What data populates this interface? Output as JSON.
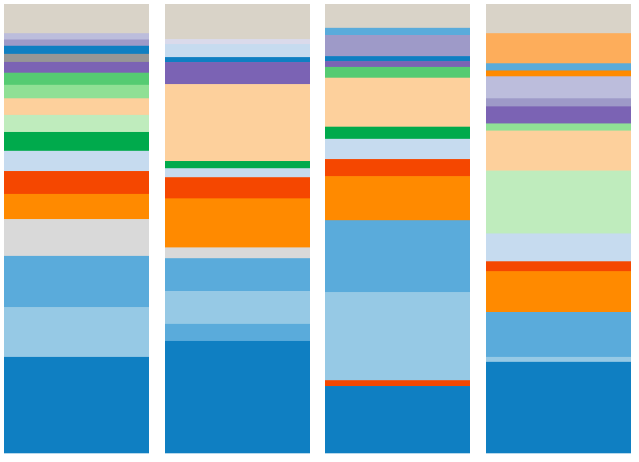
{
  "chart_data": {
    "type": "bar",
    "stacked": true,
    "normalized": true,
    "orientation": "vertical",
    "categories": [
      "",
      "",
      "",
      ""
    ],
    "title": "",
    "xlabel": "",
    "ylabel": "",
    "ylim": [
      0,
      100
    ],
    "grid": false,
    "legend": "none",
    "stack_order": "top-to-bottom",
    "bars": [
      {
        "segments": [
          {
            "value": 6.5,
            "color": "#d9d3c8"
          },
          {
            "value": 1.4,
            "color": "#bcbddc"
          },
          {
            "value": 1.4,
            "color": "#9e9ac8"
          },
          {
            "value": 1.8,
            "color": "#0f7fc2"
          },
          {
            "value": 1.8,
            "color": "#969696"
          },
          {
            "value": 2.4,
            "color": "#7b63b4"
          },
          {
            "value": 2.7,
            "color": "#55cb72"
          },
          {
            "value": 3.0,
            "color": "#90e095"
          },
          {
            "value": 3.7,
            "color": "#fdd09c"
          },
          {
            "value": 3.8,
            "color": "#bfecbd"
          },
          {
            "value": 4.2,
            "color": "#00aa4c"
          },
          {
            "value": 4.5,
            "color": "#c6dbef"
          },
          {
            "value": 5.1,
            "color": "#f54700"
          },
          {
            "value": 5.6,
            "color": "#ff8a00"
          },
          {
            "value": 8.2,
            "color": "#d9d9d9"
          },
          {
            "value": 11.4,
            "color": "#5aabdb"
          },
          {
            "value": 11.1,
            "color": "#96c9e5"
          },
          {
            "value": 21.4,
            "color": "#0f7fc2"
          }
        ]
      },
      {
        "segments": [
          {
            "value": 7.8,
            "color": "#d9d3c8"
          },
          {
            "value": 1.1,
            "color": "#dadaeb"
          },
          {
            "value": 2.9,
            "color": "#c6dbef"
          },
          {
            "value": 1.1,
            "color": "#0f7fc2"
          },
          {
            "value": 4.9,
            "color": "#7b63b4"
          },
          {
            "value": 17.1,
            "color": "#fdd09c"
          },
          {
            "value": 1.6,
            "color": "#00aa4c"
          },
          {
            "value": 2.0,
            "color": "#c6dbef"
          },
          {
            "value": 4.7,
            "color": "#f54700"
          },
          {
            "value": 10.9,
            "color": "#ff8a00"
          },
          {
            "value": 2.4,
            "color": "#d9d9d9"
          },
          {
            "value": 7.3,
            "color": "#5aabdb"
          },
          {
            "value": 7.3,
            "color": "#96c9e5"
          },
          {
            "value": 3.8,
            "color": "#5aabdb"
          },
          {
            "value": 24.9,
            "color": "#0f7fc2"
          }
        ]
      },
      {
        "segments": [
          {
            "value": 5.3,
            "color": "#d9d3c8"
          },
          {
            "value": 1.6,
            "color": "#5aabdb"
          },
          {
            "value": 4.7,
            "color": "#9e9ac8"
          },
          {
            "value": 1.1,
            "color": "#0f7fc2"
          },
          {
            "value": 1.3,
            "color": "#7b63b4"
          },
          {
            "value": 2.4,
            "color": "#55cb72"
          },
          {
            "value": 10.9,
            "color": "#fdd09c"
          },
          {
            "value": 2.7,
            "color": "#00aa4c"
          },
          {
            "value": 4.5,
            "color": "#c6dbef"
          },
          {
            "value": 3.8,
            "color": "#f54700"
          },
          {
            "value": 9.8,
            "color": "#ff8a00"
          },
          {
            "value": 16.0,
            "color": "#5aabdb"
          },
          {
            "value": 19.6,
            "color": "#96c9e5"
          },
          {
            "value": 1.3,
            "color": "#f54700"
          },
          {
            "value": 14.9,
            "color": "#0f7fc2"
          }
        ]
      },
      {
        "segments": [
          {
            "value": 6.5,
            "color": "#d9d3c8"
          },
          {
            "value": 6.7,
            "color": "#fdad5b"
          },
          {
            "value": 1.6,
            "color": "#5aabdb"
          },
          {
            "value": 1.3,
            "color": "#ff8a00"
          },
          {
            "value": 4.9,
            "color": "#bcbddc"
          },
          {
            "value": 1.8,
            "color": "#9e9ac8"
          },
          {
            "value": 3.8,
            "color": "#7b63b4"
          },
          {
            "value": 1.6,
            "color": "#90e095"
          },
          {
            "value": 8.9,
            "color": "#fdd09c"
          },
          {
            "value": 14.0,
            "color": "#bfecbd"
          },
          {
            "value": 6.2,
            "color": "#c6dbef"
          },
          {
            "value": 2.2,
            "color": "#f54700"
          },
          {
            "value": 9.1,
            "color": "#ff8a00"
          },
          {
            "value": 10.0,
            "color": "#5aabdb"
          },
          {
            "value": 1.1,
            "color": "#96c9e5"
          },
          {
            "value": 20.3,
            "color": "#0f7fc2"
          }
        ]
      }
    ]
  }
}
